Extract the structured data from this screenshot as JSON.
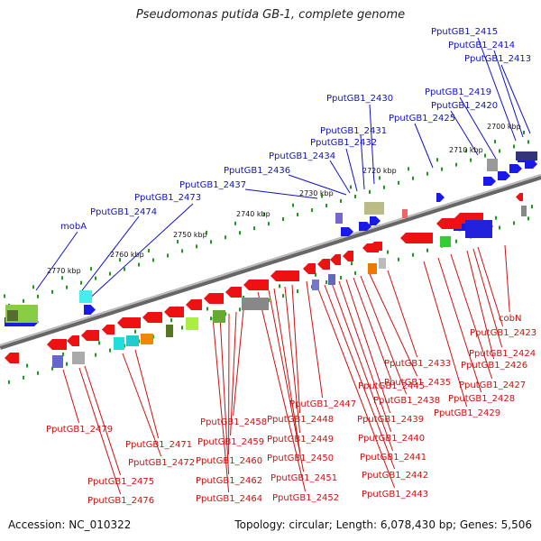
{
  "title": "Pseudomonas putida GB-1, complete genome",
  "footer": {
    "accession": "Accession: NC_010322",
    "summary": "Topology: circular; Length: 6,078,430 bp; Genes: 5,506"
  },
  "colors": {
    "plus_label": "#1010c8",
    "minus_label": "#cc1010",
    "plus_gene": "#1a1ae6",
    "minus_gene": "#ee1111",
    "backbone": "#8a8a8a",
    "ticks": "#1f9a1f"
  },
  "ruler": [
    "2700 kbp",
    "2710 kbp",
    "2720 kbp",
    "2730 kbp",
    "2740 kbp",
    "2750 kbp",
    "2760 kbp",
    "2770 kbp"
  ],
  "plus_labels": [
    "PputGB1_2415",
    "PputGB1_2414",
    "PputGB1_2413",
    "PputGB1_2430",
    "PputGB1_2419",
    "PputGB1_2420",
    "PputGB1_2425",
    "PputGB1_2431",
    "PputGB1_2432",
    "PputGB1_2434",
    "PputGB1_2436",
    "PputGB1_2437",
    "PputGB1_2473",
    "PputGB1_2474",
    "mobA"
  ],
  "minus_labels": [
    "cobN",
    "PputGB1_2423",
    "PputGB1_2424",
    "PputGB1_2426",
    "PputGB1_2433",
    "PputGB1_2427",
    "PputGB1_2435",
    "PputGB1_2428",
    "PputGB1_2445",
    "PputGB1_2438",
    "PputGB1_2429",
    "PputGB1_2447",
    "PputGB1_2439",
    "PputGB1_2458",
    "PputGB1_2448",
    "PputGB1_2479",
    "PputGB1_2440",
    "PputGB1_2471",
    "PputGB1_2459",
    "PputGB1_2449",
    "PputGB1_2441",
    "PputGB1_2472",
    "PputGB1_2460",
    "PputGB1_2450",
    "PputGB1_2442",
    "PputGB1_2475",
    "PputGB1_2462",
    "PputGB1_2451",
    "PputGB1_2443",
    "PputGB1_2476",
    "PputGB1_2464",
    "PputGB1_2452"
  ]
}
